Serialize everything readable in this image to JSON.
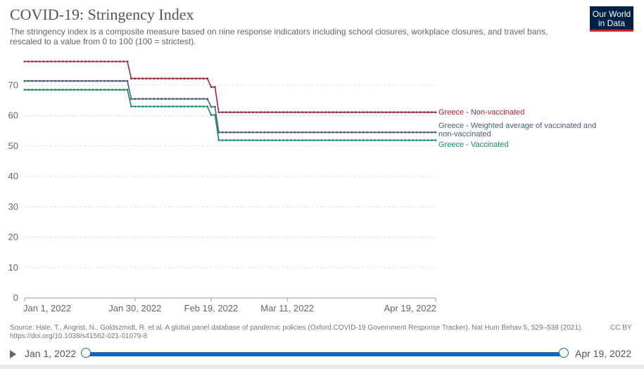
{
  "header": {
    "title": "COVID-19: Stringency Index",
    "subtitle": "The stringency index is a composite measure based on nine response indicators including school closures, workplace closures, and travel bans, rescaled to a value from 0 to 100 (100 = strictest).",
    "logo_line1": "Our World",
    "logo_line2": "in Data"
  },
  "chart_data": {
    "type": "line",
    "title": "COVID-19: Stringency Index",
    "subtitle": "The stringency index is a composite measure based on nine response indicators including school closures, workplace closures, and travel bans, rescaled to a value from 0 to 100 (100 = strictest).",
    "xlabel": "",
    "ylabel": "",
    "x_range": [
      "2022-01-01",
      "2022-04-19"
    ],
    "ylim": [
      0,
      80
    ],
    "y_ticks": [
      0,
      10,
      20,
      30,
      40,
      50,
      60,
      70
    ],
    "x_tick_labels": [
      "Jan 1, 2022",
      "Jan 30, 2022",
      "Feb 19, 2022",
      "Mar 11, 2022",
      "Apr 19, 2022"
    ],
    "x_tick_dates": [
      "2022-01-01",
      "2022-01-30",
      "2022-02-19",
      "2022-03-11",
      "2022-04-19"
    ],
    "grid": "horizontal dashed",
    "legend": "inline labels at line ends",
    "series": [
      {
        "name": "Greece - Non-vaccinated",
        "label_lines": [
          "Greece - Non-vaccinated"
        ],
        "color": "#a2293a",
        "points": [
          [
            "2022-01-01",
            77.8
          ],
          [
            "2022-01-28",
            77.8
          ],
          [
            "2022-01-29",
            72.2
          ],
          [
            "2022-02-18",
            72.2
          ],
          [
            "2022-02-19",
            69.4
          ],
          [
            "2022-02-20",
            69.4
          ],
          [
            "2022-02-21",
            61.1
          ],
          [
            "2022-04-19",
            61.1
          ]
        ]
      },
      {
        "name": "Greece - Weighted average of vaccinated and non-vaccinated",
        "label_lines": [
          "Greece - Weighted average of vaccinated and",
          "non-vaccinated"
        ],
        "color": "#4c5c78",
        "points": [
          [
            "2022-01-01",
            71.4
          ],
          [
            "2022-01-28",
            71.4
          ],
          [
            "2022-01-29",
            65.5
          ],
          [
            "2022-02-18",
            65.5
          ],
          [
            "2022-02-19",
            62.9
          ],
          [
            "2022-02-20",
            62.9
          ],
          [
            "2022-02-21",
            54.5
          ],
          [
            "2022-04-19",
            54.5
          ]
        ]
      },
      {
        "name": "Greece - Vaccinated",
        "label_lines": [
          "Greece - Vaccinated"
        ],
        "color": "#138a6b",
        "points": [
          [
            "2022-01-01",
            68.5
          ],
          [
            "2022-01-28",
            68.5
          ],
          [
            "2022-01-29",
            63.0
          ],
          [
            "2022-02-18",
            63.0
          ],
          [
            "2022-02-19",
            60.2
          ],
          [
            "2022-02-20",
            60.2
          ],
          [
            "2022-02-21",
            51.9
          ],
          [
            "2022-04-19",
            51.9
          ]
        ]
      }
    ]
  },
  "footer": {
    "source": "Source: Hale, T., Angrist, N., Goldszmidt, R. et al. A global panel database of pandemic policies (Oxford COVID-19 Government Response Tracker). Nat Hum Behav 5, 529–538 (2021). https://doi.org/10.1038/s41562-021-01079-8",
    "license": "CC BY"
  },
  "timeline": {
    "start_label": "Jan 1, 2022",
    "end_label": "Apr 19, 2022"
  }
}
